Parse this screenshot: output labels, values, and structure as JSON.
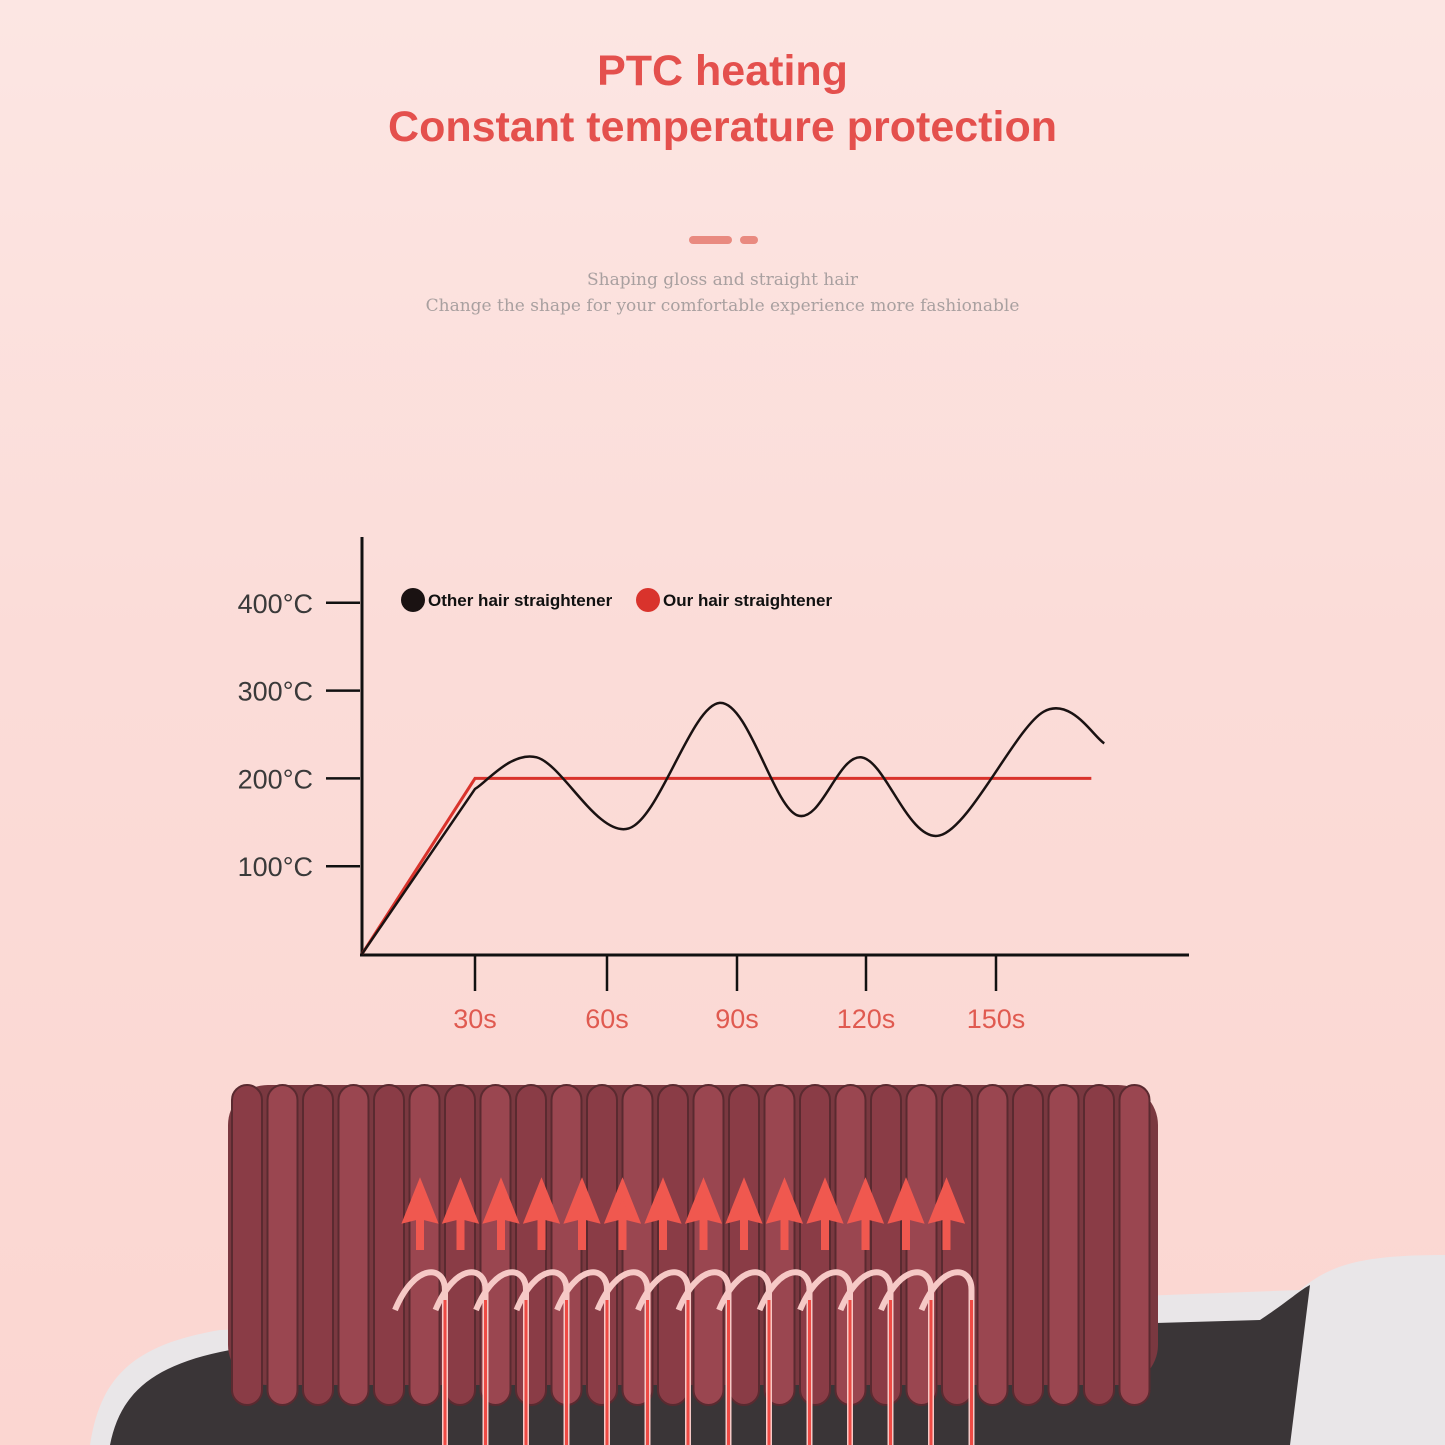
{
  "header": {
    "title_line1": "PTC heating",
    "title_line2": "Constant temperature protection",
    "subtitle_line1": "Shaping gloss and straight hair",
    "subtitle_line2": "Change the shape for your comfortable experience more fashionable"
  },
  "colors": {
    "accent": "#e4504d",
    "our_series": "#d9332c",
    "other_series": "#1a1212",
    "highlight_tick": "#e05a50"
  },
  "chart_data": {
    "type": "line",
    "title": "",
    "xlabel": "",
    "ylabel": "",
    "x_ticks": [
      "30s",
      "60s",
      "90s",
      "120s",
      "150s"
    ],
    "y_ticks": [
      "100°C",
      "200°C",
      "300°C",
      "400°C"
    ],
    "highlighted_y_tick": "200°C",
    "ylim": [
      0,
      400
    ],
    "xlim": [
      0,
      175
    ],
    "grid": false,
    "legend_placement": "top-left",
    "series": [
      {
        "name": "Other hair straightener",
        "color": "#1a1212",
        "x": [
          0,
          30,
          44,
          65,
          86,
          104,
          119,
          137,
          161,
          175
        ],
        "y": [
          0,
          188,
          224,
          143,
          286,
          158,
          224,
          135,
          276,
          240
        ]
      },
      {
        "name": "Our hair straightener",
        "color": "#d9332c",
        "x": [
          0,
          30,
          172
        ],
        "y": [
          0,
          200,
          200
        ]
      }
    ]
  },
  "product": {
    "icon": "heating-comb-illustration"
  }
}
